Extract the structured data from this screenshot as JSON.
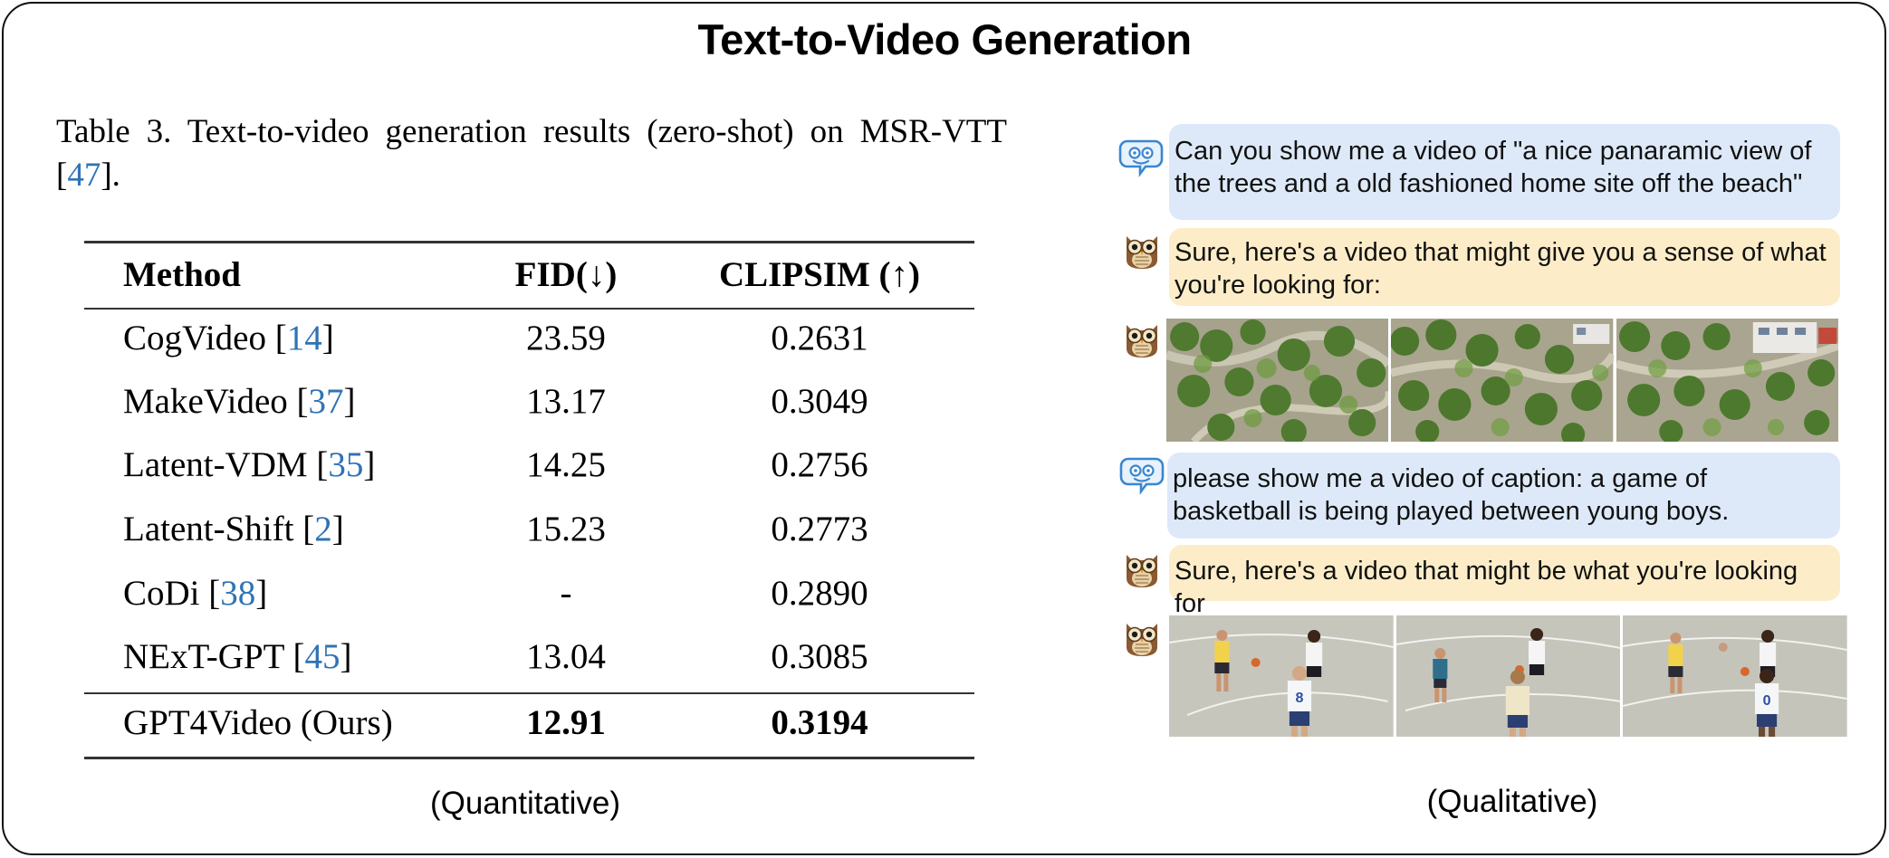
{
  "title": "Text-to-Video Generation",
  "table": {
    "caption_prefix": "Table 3.  Text-to-video generation results (zero-shot) on MSR-VTT [",
    "caption_ref": "47",
    "caption_suffix": "].",
    "headers": {
      "method": "Method",
      "fid": "FID(↓)",
      "clipsim": "CLIPSIM (↑)"
    },
    "rows": [
      {
        "method": "CogVideo [",
        "ref": "14",
        "close": "]",
        "fid": "23.59",
        "clipsim": "0.2631"
      },
      {
        "method": "MakeVideo [",
        "ref": "37",
        "close": "]",
        "fid": "13.17",
        "clipsim": "0.3049"
      },
      {
        "method": "Latent-VDM [",
        "ref": "35",
        "close": "]",
        "fid": "14.25",
        "clipsim": "0.2756"
      },
      {
        "method": "Latent-Shift [",
        "ref": "2",
        "close": "]",
        "fid": "15.23",
        "clipsim": "0.2773"
      },
      {
        "method": "CoDi [",
        "ref": "38",
        "close": "]",
        "fid": "-",
        "clipsim": "0.2890"
      },
      {
        "method": "NExT-GPT [",
        "ref": "45",
        "close": "]",
        "fid": "13.04",
        "clipsim": "0.3085"
      }
    ],
    "ours": {
      "method": "GPT4Video (Ours)",
      "fid": "12.91",
      "clipsim": "0.3194"
    },
    "label": "(Quantitative)"
  },
  "chat": {
    "messages": [
      {
        "role": "user",
        "text": "Can you show me a video of \"a nice panaramic view of the trees and a old fashioned home site off the beach\""
      },
      {
        "role": "assistant",
        "text": "Sure, here's a video that might give you a sense of what you're looking for:"
      },
      {
        "role": "user",
        "text": "please show me a video of caption: a game of basketball is being played between young boys."
      },
      {
        "role": "assistant",
        "text": "Sure, here's a video that might be what you're looking for"
      }
    ],
    "label": "(Qualitative)"
  },
  "colors": {
    "ref": "#2f73b5",
    "user_bubble": "#dde9f8",
    "bot_bubble": "#fcedc8"
  },
  "icons": {
    "user": "robot-face-chat-icon",
    "assistant": "owl-icon"
  }
}
